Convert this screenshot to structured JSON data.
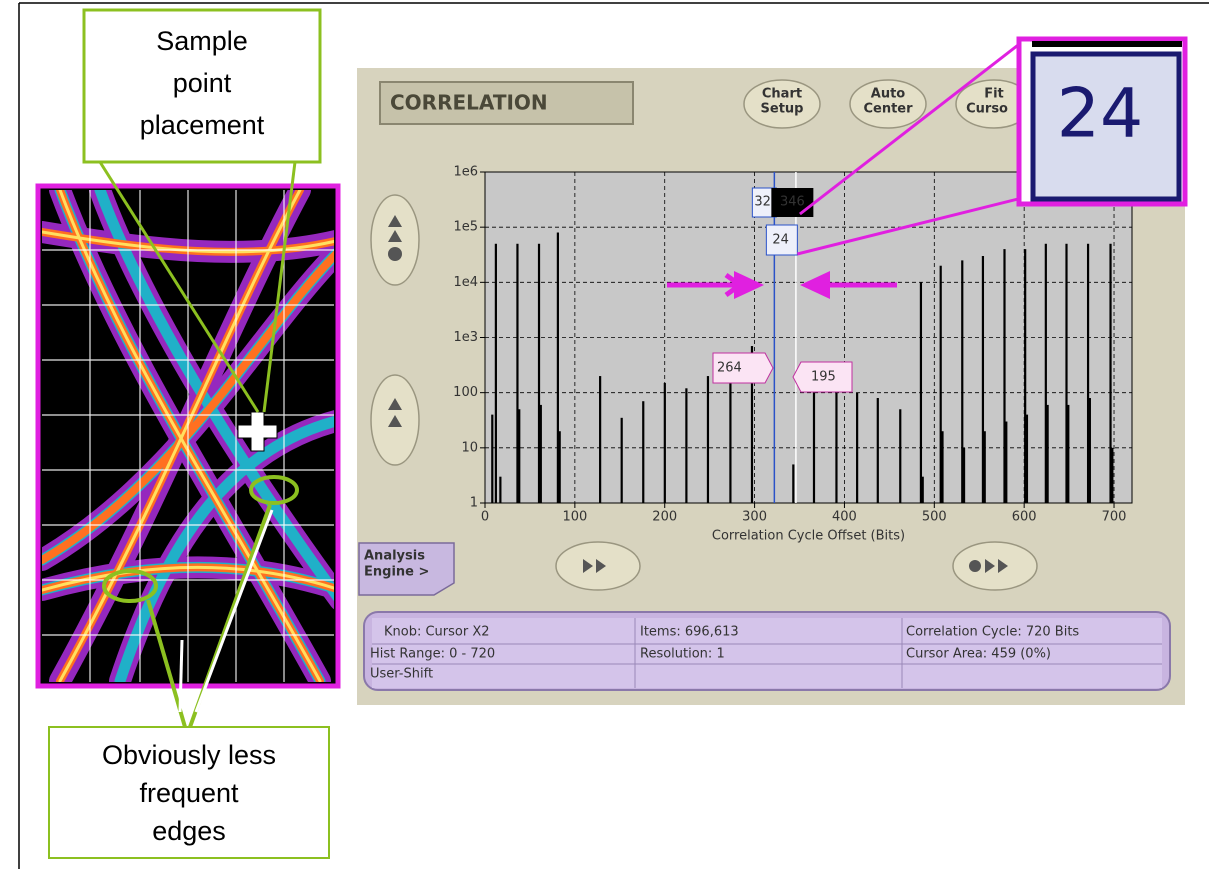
{
  "callouts": {
    "top": [
      "Sample",
      "point",
      "placement"
    ],
    "bottom": [
      "Obviously less",
      "frequent",
      "edges"
    ]
  },
  "app": {
    "title": "CORRELATION",
    "buttons": [
      [
        "Chart",
        "Setup"
      ],
      [
        "Auto",
        "Center"
      ],
      [
        "Fit",
        "Curso"
      ]
    ],
    "analysis_tab": [
      "Analysis",
      "Engine >"
    ],
    "status": [
      [
        "Knob:  Cursor X2",
        "Items: 696,613",
        "Correlation Cycle: 720 Bits"
      ],
      [
        "Hist Range: 0 - 720",
        "Resolution: 1",
        "Cursor Area: 459 (0%)"
      ],
      [
        "User-Shift"
      ]
    ]
  },
  "chart_data": {
    "type": "bar",
    "x_label": "Correlation Cycle Offset (Bits)",
    "log_y": true,
    "grid": true,
    "color": "#000000",
    "xlim": [
      0,
      720
    ],
    "ylim": [
      1,
      1000000
    ],
    "xticks": [
      0,
      100,
      200,
      300,
      400,
      500,
      600,
      700
    ],
    "yticks": [
      1,
      10,
      100,
      {
        "value": 1000,
        "label": "1e3"
      },
      {
        "value": 10000,
        "label": "1e4"
      },
      {
        "value": 100000,
        "label": "1e5"
      },
      {
        "value": 1000000,
        "label": "1e6"
      }
    ],
    "x": [
      8,
      12,
      17,
      36,
      38,
      60,
      62,
      81,
      83,
      128,
      152,
      176,
      200,
      224,
      248,
      273,
      297,
      343,
      366,
      391,
      414,
      437,
      462,
      485,
      487,
      507,
      509,
      531,
      533,
      554,
      556,
      578,
      580,
      601,
      603,
      624,
      626,
      647,
      649,
      671,
      673,
      696,
      698
    ],
    "values": [
      40,
      50000,
      3,
      50000,
      50,
      50000,
      60,
      80000,
      20,
      200,
      35,
      70,
      150,
      120,
      200,
      250,
      700,
      5,
      120,
      100,
      100,
      80,
      50,
      10000,
      3,
      20000,
      20,
      25000,
      10,
      30000,
      20,
      40000,
      30,
      40000,
      40,
      50000,
      60,
      50000,
      60,
      50000,
      80,
      50000,
      10
    ],
    "cursors": [
      {
        "value": 322,
        "label": "32",
        "color": "#2a52c8"
      },
      {
        "value": 346,
        "color": "#ffffff"
      }
    ],
    "delta": 24,
    "flags": [
      264,
      195
    ]
  }
}
